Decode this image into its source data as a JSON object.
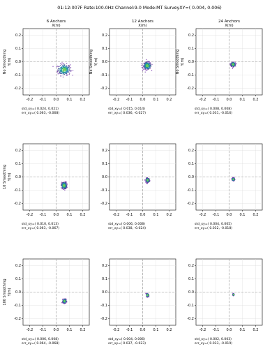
{
  "suptitle": "01:12:007F  Rate:100.0Hz  Channel:9.0  Mode:MT SurveyXY=( 0.004,  0.006)",
  "column_titles": [
    "6 Anchors",
    "12 Anchors",
    "24 Anchors"
  ],
  "row_labels": [
    "No Smoothing",
    "10 Smoothing",
    "100 Smoothing"
  ],
  "colors": {
    "cloud_outer": "#7b3fb0",
    "cloud_inner": [
      "#2c7fb8",
      "#1fa187",
      "#6ece58",
      "#3b528b"
    ],
    "axis": "#000000",
    "grid": "#dddddd",
    "guide": "#999999"
  },
  "chart_data": [
    {
      "type": "scatter",
      "title": "6 Anchors",
      "xlabel": "X(m)",
      "ylabel": "Y(m)",
      "xlim": [
        -0.25,
        0.25
      ],
      "ylim": [
        -0.25,
        0.25
      ],
      "ticks": [
        "-0.2",
        "-0.1",
        "0.0",
        "0.1",
        "0.2"
      ],
      "grid": true,
      "center": [
        0.06,
        -0.06
      ],
      "spread": [
        0.024,
        0.021
      ],
      "std_xy": "std_xy=( 0.024,  0.021)",
      "err_xy": "err_xy=( 0.063, -0.068)"
    },
    {
      "type": "scatter",
      "title": "12 Anchors",
      "xlabel": "X(m)",
      "ylabel": "Y(m)",
      "xlim": [
        -0.25,
        0.25
      ],
      "ylim": [
        -0.25,
        0.25
      ],
      "ticks": [
        "-0.2",
        "-0.1",
        "0.0",
        "0.1",
        "0.2"
      ],
      "grid": true,
      "center": [
        0.035,
        -0.03
      ],
      "spread": [
        0.015,
        0.014
      ],
      "std_xy": "std_xy=( 0.015,  0.014)",
      "err_xy": "err_xy=( 0.036, -0.027)"
    },
    {
      "type": "scatter",
      "title": "24 Anchors",
      "xlabel": "X(m)",
      "ylabel": "Y(m)",
      "xlim": [
        -0.25,
        0.25
      ],
      "ylim": [
        -0.25,
        0.25
      ],
      "ticks": [
        "-0.2",
        "-0.1",
        "0.0",
        "0.1",
        "0.2"
      ],
      "grid": true,
      "center": [
        0.03,
        -0.02
      ],
      "spread": [
        0.008,
        0.008
      ],
      "std_xy": "std_xy=( 0.008,  0.008)",
      "err_xy": "err_xy=( 0.031, -0.016)"
    },
    {
      "type": "scatter",
      "title": "",
      "xlabel": "",
      "ylabel": "Y(m)",
      "xlim": [
        -0.25,
        0.25
      ],
      "ylim": [
        -0.25,
        0.25
      ],
      "ticks": [
        "-0.2",
        "-0.1",
        "0.0",
        "0.1",
        "0.2"
      ],
      "grid": true,
      "center": [
        0.06,
        -0.065
      ],
      "spread": [
        0.01,
        0.013
      ],
      "std_xy": "std_xy=( 0.010,  0.013)",
      "err_xy": "err_xy=( 0.063, -0.067)"
    },
    {
      "type": "scatter",
      "title": "",
      "xlabel": "",
      "ylabel": "",
      "xlim": [
        -0.25,
        0.25
      ],
      "ylim": [
        -0.25,
        0.25
      ],
      "ticks": [
        "-0.2",
        "-0.1",
        "0.0",
        "0.1",
        "0.2"
      ],
      "grid": true,
      "center": [
        0.038,
        -0.025
      ],
      "spread": [
        0.006,
        0.008
      ],
      "std_xy": "std_xy=( 0.006,  0.008)",
      "err_xy": "err_xy=( 0.038, -0.024)"
    },
    {
      "type": "scatter",
      "title": "",
      "xlabel": "",
      "ylabel": "",
      "xlim": [
        -0.25,
        0.25
      ],
      "ylim": [
        -0.25,
        0.25
      ],
      "ticks": [
        "-0.2",
        "-0.1",
        "0.0",
        "0.1",
        "0.2"
      ],
      "grid": true,
      "center": [
        0.032,
        -0.018
      ],
      "spread": [
        0.004,
        0.005
      ],
      "std_xy": "std_xy=( 0.004,  0.005)",
      "err_xy": "err_xy=( 0.032, -0.018)"
    },
    {
      "type": "scatter",
      "title": "",
      "xlabel": "",
      "ylabel": "Y(m)",
      "xlim": [
        -0.25,
        0.25
      ],
      "ylim": [
        -0.25,
        0.25
      ],
      "ticks": [
        "-0.2",
        "-0.1",
        "0.0",
        "0.1",
        "0.2"
      ],
      "grid": true,
      "center": [
        0.063,
        -0.068
      ],
      "spread": [
        0.006,
        0.008
      ],
      "std_xy": "std_xy=( 0.006,  0.008)",
      "err_xy": "err_xy=( 0.064, -0.068)"
    },
    {
      "type": "scatter",
      "title": "",
      "xlabel": "",
      "ylabel": "",
      "xlim": [
        -0.25,
        0.25
      ],
      "ylim": [
        -0.25,
        0.25
      ],
      "ticks": [
        "-0.2",
        "-0.1",
        "0.0",
        "0.1",
        "0.2"
      ],
      "grid": true,
      "center": [
        0.037,
        -0.023
      ],
      "spread": [
        0.004,
        0.006
      ],
      "std_xy": "std_xy=( 0.004,  0.006)",
      "err_xy": "err_xy=( 0.037, -0.023)"
    },
    {
      "type": "scatter",
      "title": "",
      "xlabel": "",
      "ylabel": "",
      "xlim": [
        -0.25,
        0.25
      ],
      "ylim": [
        -0.25,
        0.25
      ],
      "ticks": [
        "-0.2",
        "-0.1",
        "0.0",
        "0.1",
        "0.2"
      ],
      "grid": true,
      "center": [
        0.033,
        -0.019
      ],
      "spread": [
        0.002,
        0.003
      ],
      "std_xy": "std_xy=( 0.002,  0.003)",
      "err_xy": "err_xy=( 0.033, -0.019)"
    }
  ]
}
